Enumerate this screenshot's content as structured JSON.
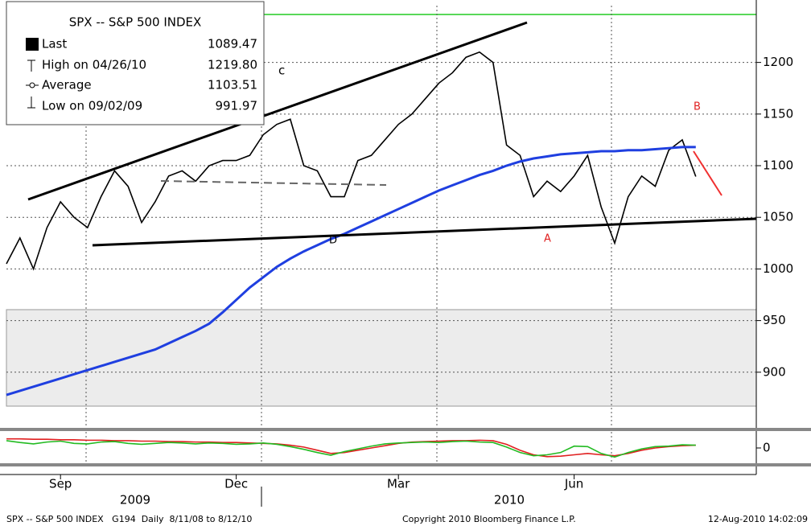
{
  "chart_data": [
    {
      "type": "line",
      "legend_title": "SPX -- S&P 500 INDEX",
      "stats": [
        {
          "name": "Last",
          "value": "1089.47"
        },
        {
          "name": "High on 04/26/10",
          "value": "1219.80"
        },
        {
          "name": "Average",
          "value": "1103.51"
        },
        {
          "name": "Low on 09/02/09",
          "value": "991.97"
        }
      ],
      "annotations": [
        "c",
        "B",
        "D",
        "A"
      ],
      "categories": [
        null,
        null,
        null,
        null,
        "Sep",
        null,
        null,
        null,
        null,
        null,
        null,
        null,
        null,
        null,
        null,
        null,
        null,
        "Dec",
        null,
        null,
        null,
        null,
        null,
        null,
        null,
        null,
        null,
        null,
        null,
        "Mar",
        null,
        null,
        null,
        null,
        null,
        null,
        null,
        null,
        null,
        null,
        null,
        null,
        "Jun",
        null,
        null,
        null,
        null,
        null,
        null,
        null,
        null,
        null
      ],
      "x_group_labels": [
        "2009",
        "2010"
      ],
      "series": [
        {
          "name": "Last",
          "color": "#000000",
          "values": [
            1005,
            1030,
            1000,
            1040,
            1065,
            1050,
            1040,
            1070,
            1095,
            1080,
            1045,
            1065,
            1090,
            1095,
            1085,
            1100,
            1105,
            1105,
            1110,
            1130,
            1140,
            1145,
            1100,
            1095,
            1070,
            1070,
            1105,
            1110,
            1125,
            1140,
            1150,
            1165,
            1180,
            1190,
            1205,
            1210,
            1200,
            1120,
            1110,
            1070,
            1085,
            1075,
            1090,
            1110,
            1060,
            1025,
            1070,
            1090,
            1080,
            1115,
            1125,
            1089.47
          ]
        },
        {
          "name": "Average",
          "color": "#1f3fe0",
          "values": [
            878,
            882,
            886,
            890,
            894,
            898,
            902,
            906,
            910,
            914,
            918,
            922,
            928,
            934,
            940,
            947,
            958,
            970,
            982,
            992,
            1002,
            1010,
            1017,
            1023,
            1029,
            1034,
            1040,
            1046,
            1052,
            1058,
            1064,
            1070,
            1076,
            1081,
            1086,
            1091,
            1095,
            1100,
            1104,
            1107,
            1109,
            1111,
            1112,
            1113,
            1114,
            1114,
            1115,
            1115,
            1116,
            1117,
            1118,
            1118
          ]
        }
      ],
      "ylim": [
        850,
        1255
      ],
      "yticks": [
        900,
        950,
        1000,
        1050,
        1100,
        1150,
        1200
      ],
      "grid": true
    },
    {
      "type": "line",
      "series": [
        {
          "color": "#e02020",
          "values": [
            2.0,
            2.0,
            1.9,
            1.9,
            1.8,
            1.8,
            1.7,
            1.7,
            1.6,
            1.6,
            1.5,
            1.5,
            1.4,
            1.4,
            1.3,
            1.3,
            1.2,
            1.2,
            1.1,
            1.0,
            0.9,
            0.6,
            0.2,
            -0.5,
            -1.2,
            -1.0,
            -0.5,
            0,
            0.5,
            1.0,
            1.3,
            1.4,
            1.5,
            1.6,
            1.6,
            1.7,
            1.6,
            0.8,
            -0.5,
            -1.5,
            -1.9,
            -1.8,
            -1.5,
            -1.2,
            -1.5,
            -1.7,
            -1.2,
            -0.5,
            0,
            0.3,
            0.5,
            0.6
          ]
        },
        {
          "color": "#22bb22",
          "values": [
            1.6,
            1.2,
            0.9,
            1.3,
            1.5,
            1.0,
            0.9,
            1.3,
            1.4,
            1.0,
            0.8,
            1.0,
            1.2,
            1.1,
            0.9,
            1.1,
            1.0,
            0.8,
            0.9,
            1.1,
            0.8,
            0.3,
            -0.3,
            -1.0,
            -1.6,
            -0.8,
            -0.2,
            0.4,
            0.9,
            1.1,
            1.2,
            1.3,
            1.2,
            1.4,
            1.5,
            1.3,
            1.2,
            0.2,
            -1.0,
            -1.7,
            -1.5,
            -1.0,
            0.4,
            0.3,
            -1.2,
            -2.0,
            -1.0,
            -0.2,
            0.3,
            0.4,
            0.7,
            0.6
          ]
        }
      ],
      "ylim": [
        -3,
        3
      ],
      "yticks": [
        0
      ]
    }
  ],
  "footer": {
    "left": "SPX -- S&P 500 INDEX   G194  Daily  8/11/08 to 8/12/10",
    "center": "Copyright 2010 Bloomberg Finance L.P.",
    "right": "12-Aug-2010 14:02:09"
  }
}
